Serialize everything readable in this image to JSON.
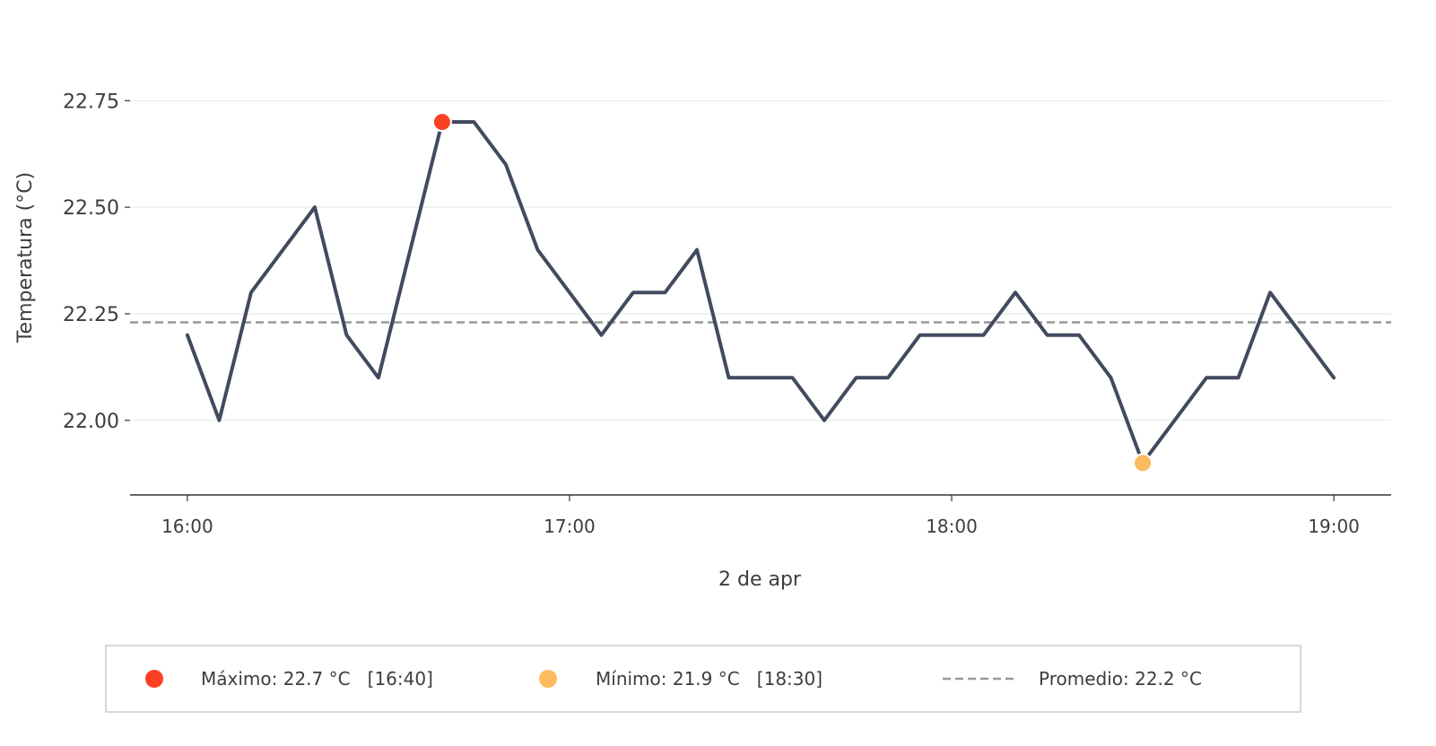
{
  "chart_data": {
    "type": "line",
    "title": "",
    "xlabel": "2 de apr",
    "ylabel": "Temperatura (°C)",
    "ylim": [
      21.825,
      22.86
    ],
    "xlim": [
      "15:51",
      "19:09"
    ],
    "x_ticks": [
      "16:00",
      "17:00",
      "18:00",
      "19:00"
    ],
    "y_ticks": [
      22.0,
      22.25,
      22.5,
      22.75
    ],
    "y_tick_labels": [
      "22.00",
      "22.25",
      "22.50",
      "22.75"
    ],
    "grid": "horizontal",
    "legend_position": "bottom",
    "x": [
      "16:00",
      "16:05",
      "16:10",
      "16:15",
      "16:20",
      "16:25",
      "16:30",
      "16:35",
      "16:40",
      "16:45",
      "16:50",
      "16:55",
      "17:00",
      "17:05",
      "17:10",
      "17:15",
      "17:20",
      "17:25",
      "17:30",
      "17:35",
      "17:40",
      "17:45",
      "17:50",
      "17:55",
      "18:00",
      "18:05",
      "18:10",
      "18:15",
      "18:20",
      "18:25",
      "18:30",
      "18:35",
      "18:40",
      "18:45",
      "18:50",
      "18:55",
      "19:00"
    ],
    "series": [
      {
        "values": [
          22.2,
          22.0,
          22.3,
          22.4,
          22.5,
          22.2,
          22.1,
          22.4,
          22.7,
          22.7,
          22.6,
          22.4,
          22.3,
          22.2,
          22.3,
          22.3,
          22.4,
          22.1,
          22.1,
          22.1,
          22.0,
          22.1,
          22.1,
          22.2,
          22.2,
          22.2,
          22.3,
          22.2,
          22.2,
          22.1,
          21.9,
          22.0,
          22.1,
          22.1,
          22.3,
          22.2,
          22.1
        ],
        "color": "#424a5f"
      }
    ],
    "max_point": {
      "x": "16:40",
      "y": 22.7,
      "color": "#fc4024"
    },
    "min_point": {
      "x": "18:30",
      "y": 21.9,
      "color": "#fcbb5e"
    },
    "average": {
      "value": 22.23,
      "color": "#999999"
    },
    "legend": {
      "max_label": "Máximo: 22.7 °C   [16:40]",
      "min_label": "Mínimo: 21.9 °C   [18:30]",
      "avg_label": "Promedio: 22.2 °C"
    }
  }
}
